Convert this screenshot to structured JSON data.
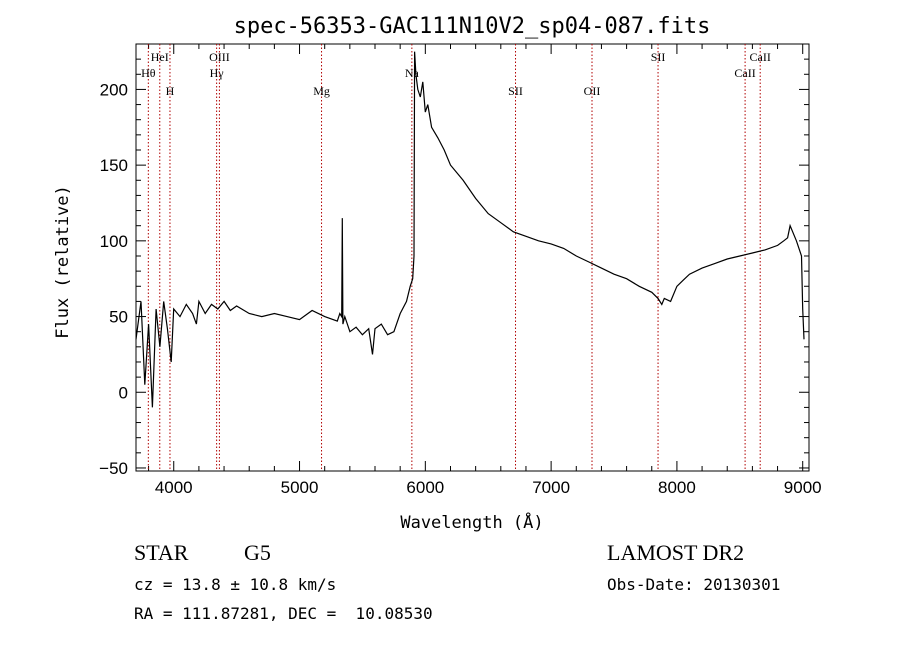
{
  "chart_data": {
    "type": "line",
    "title": "spec-56353-GAC111N10V2_sp04-087.fits",
    "xlabel": "Wavelength (Å)",
    "ylabel": "Flux (relative)",
    "xlim": [
      3700,
      9050
    ],
    "ylim": [
      -52,
      230
    ],
    "xticks": [
      4000,
      5000,
      6000,
      7000,
      8000,
      9000
    ],
    "yticks": [
      -50,
      0,
      50,
      100,
      150,
      200
    ],
    "grid": false,
    "series": [
      {
        "color": "#000000",
        "x": [
          3700,
          3740,
          3770,
          3800,
          3830,
          3860,
          3890,
          3920,
          3950,
          3980,
          4000,
          4050,
          4100,
          4150,
          4180,
          4200,
          4250,
          4300,
          4350,
          4400,
          4450,
          4500,
          4600,
          4700,
          4800,
          4900,
          5000,
          5100,
          5200,
          5300,
          5320,
          5335,
          5340,
          5345,
          5360,
          5400,
          5450,
          5500,
          5550,
          5580,
          5600,
          5650,
          5700,
          5750,
          5800,
          5850,
          5880,
          5900,
          5910,
          5915,
          5925,
          5940,
          5960,
          5980,
          6000,
          6020,
          6050,
          6100,
          6150,
          6200,
          6300,
          6400,
          6500,
          6600,
          6700,
          6800,
          6900,
          7000,
          7100,
          7200,
          7300,
          7400,
          7500,
          7600,
          7700,
          7800,
          7850,
          7880,
          7900,
          7950,
          8000,
          8050,
          8100,
          8200,
          8300,
          8400,
          8500,
          8600,
          8700,
          8800,
          8850,
          8880,
          8900,
          8950,
          8990,
          9000,
          9010
        ],
        "y": [
          35,
          60,
          5,
          45,
          -10,
          55,
          30,
          60,
          42,
          20,
          55,
          50,
          58,
          52,
          45,
          60,
          52,
          58,
          55,
          60,
          54,
          57,
          52,
          50,
          52,
          50,
          48,
          54,
          50,
          47,
          52,
          50,
          115,
          45,
          50,
          40,
          43,
          38,
          42,
          25,
          42,
          45,
          38,
          40,
          52,
          60,
          70,
          75,
          90,
          225,
          210,
          200,
          195,
          205,
          185,
          190,
          175,
          168,
          160,
          150,
          140,
          128,
          118,
          112,
          106,
          103,
          100,
          98,
          95,
          90,
          86,
          82,
          78,
          75,
          70,
          66,
          62,
          58,
          62,
          60,
          70,
          74,
          78,
          82,
          85,
          88,
          90,
          92,
          94,
          97,
          100,
          102,
          110,
          100,
          90,
          55,
          35
        ]
      }
    ],
    "lines": [
      {
        "name": "Hθ",
        "x": 3798,
        "label_row": 2
      },
      {
        "name": "HeI",
        "x": 3889,
        "label_row": 1
      },
      {
        "name": "H",
        "x": 3970,
        "label_row": 3
      },
      {
        "name": "Hγ",
        "x": 4341,
        "label_row": 2
      },
      {
        "name": "OIII",
        "x": 4363,
        "label_row": 1
      },
      {
        "name": "Mg",
        "x": 5175,
        "label_row": 3
      },
      {
        "name": "Na",
        "x": 5893,
        "label_row": 2
      },
      {
        "name": "SII",
        "x": 6717,
        "label_row": 3
      },
      {
        "name": "OII",
        "x": 7325,
        "label_row": 3
      },
      {
        "name": "SII",
        "x": 7850,
        "label_row": 1
      },
      {
        "name": "CaII",
        "x": 8542,
        "label_row": 2
      },
      {
        "name": "CaII",
        "x": 8662,
        "label_row": 1
      }
    ]
  },
  "info": {
    "class_label": "STAR",
    "subclass_label": "G5",
    "survey": "LAMOST DR2",
    "redshift": "cz = 13.8 ± 10.8 km/s",
    "obs_date": "Obs-Date: 20130301",
    "coords": "RA = 111.87281, DEC =  10.08530"
  }
}
